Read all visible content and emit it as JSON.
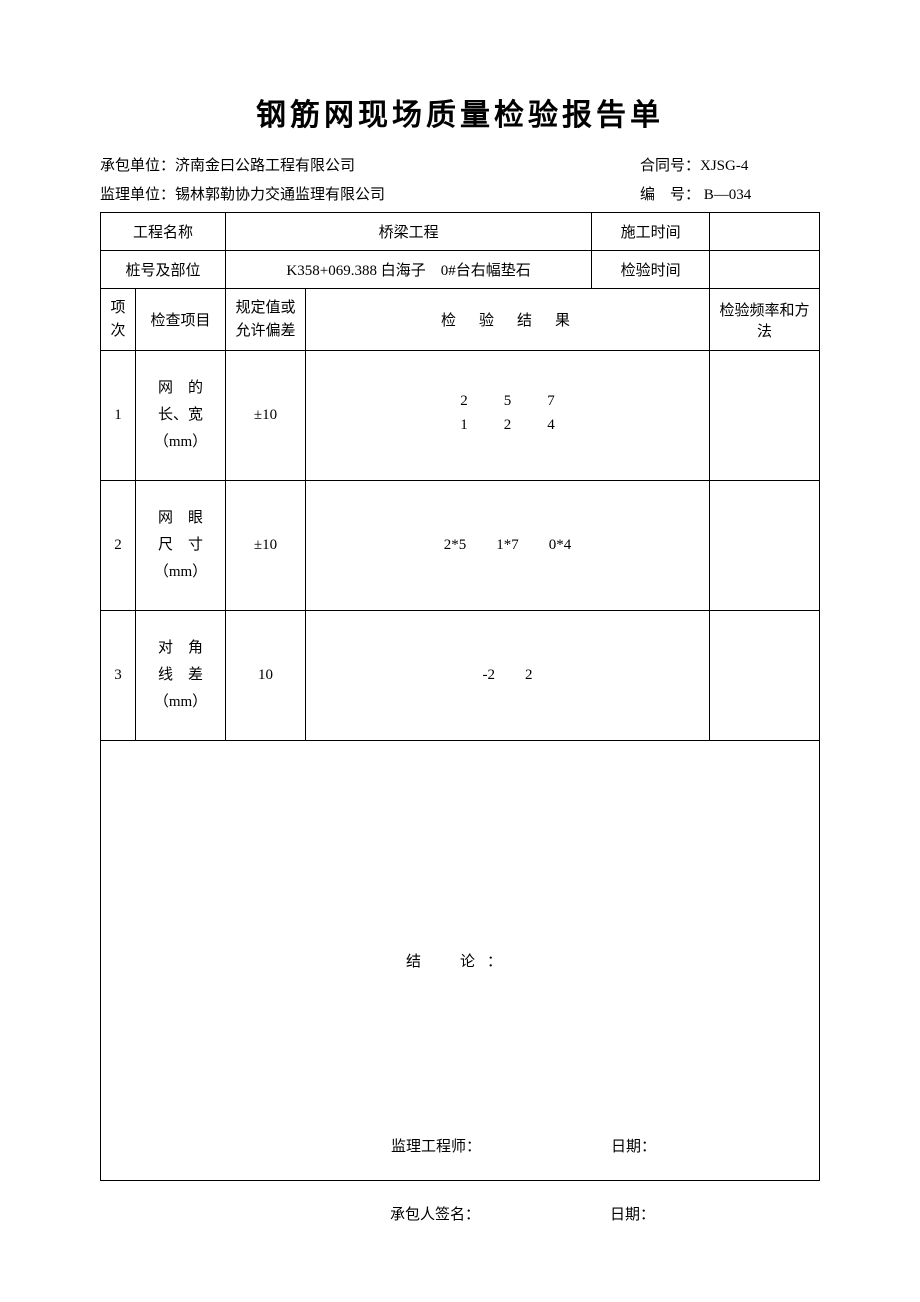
{
  "title": "钢筋网现场质量检验报告单",
  "header": {
    "contractor_label": "承包单位：",
    "contractor_value": "济南金曰公路工程有限公司",
    "contract_no_label": "合同号：",
    "contract_no_value": "XJSG-4",
    "supervisor_label": "监理单位：",
    "supervisor_value": "锡林郭勒协力交通监理有限公司",
    "serial_label": "编　号：",
    "serial_value": " B—034"
  },
  "info_rows": {
    "project_name_label": "工程名称",
    "project_name_value": "桥梁工程",
    "construction_time_label": "施工时间",
    "construction_time_value": "",
    "station_label": "桩号及部位",
    "station_value": "K358+069.388 白海子　0#台右幅垫石",
    "inspection_time_label": "检验时间",
    "inspection_time_value": ""
  },
  "columns": {
    "c1": "项次",
    "c2": "检查项目",
    "c3": "规定值或允许偏差",
    "c4": "检　验　结　果",
    "c5": "检验频率和方法"
  },
  "rows": [
    {
      "idx": "1",
      "item_l1": "网　的",
      "item_l2": "长、宽",
      "item_l3": "（mm）",
      "tolerance": "±10",
      "result_html": "<span class=\"numstack\">2<br>1</span><span class=\"numstack\">5<br>2</span><span class=\"numstack\">7<br>4</span>",
      "freq": ""
    },
    {
      "idx": "2",
      "item_l1": "网　眼",
      "item_l2": "尺　寸",
      "item_l3": "（mm）",
      "tolerance": "±10",
      "result_html": "2*5　　1*7　　0*4",
      "freq": ""
    },
    {
      "idx": "3",
      "item_l1": "对　角",
      "item_l2": "线　差",
      "item_l3": "（mm）",
      "tolerance": "10",
      "result_html": "-2　　2",
      "freq": ""
    }
  ],
  "conclusion": {
    "label": "结　论：",
    "supervisor_sign_label": "监理工程师：",
    "date_label": "日期："
  },
  "footer": {
    "signer_label": "承包人签名：",
    "date_label": "日期："
  }
}
